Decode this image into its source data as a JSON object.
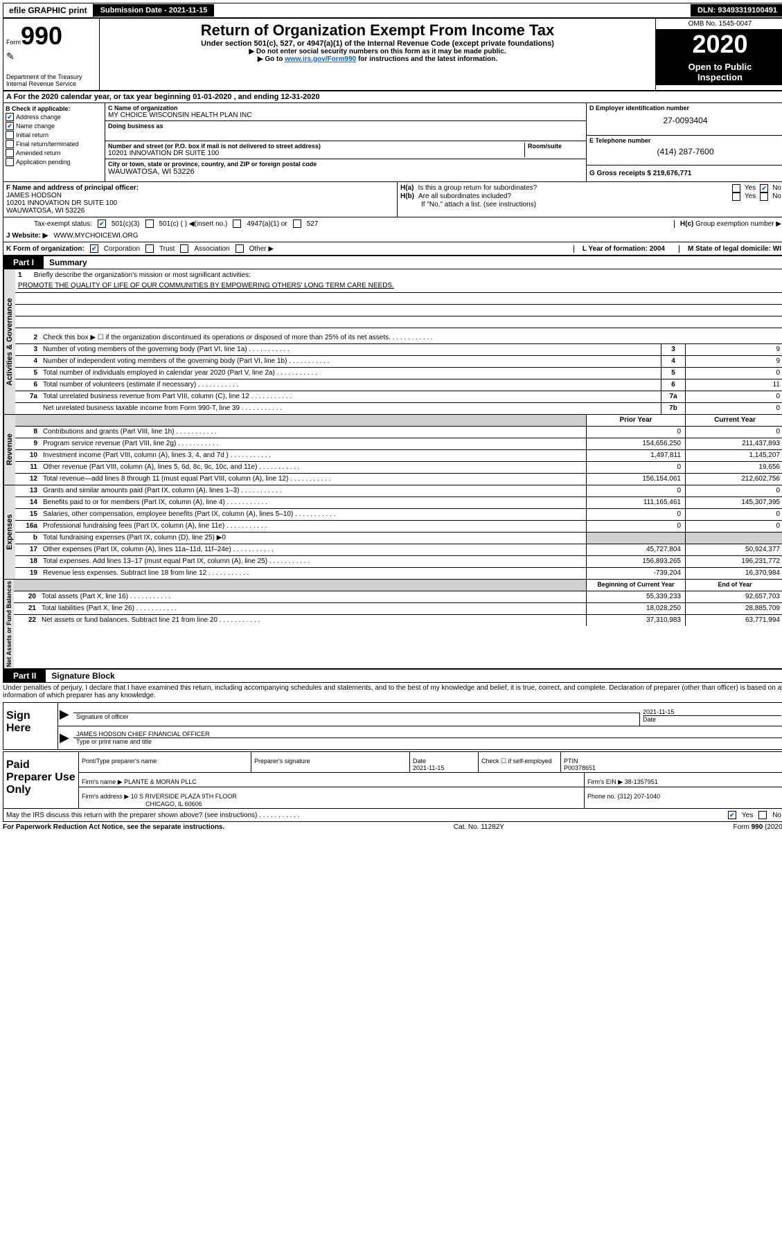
{
  "topbar": {
    "efile": "efile GRAPHIC print",
    "submission_label": "Submission Date - 2021-11-15",
    "dln": "DLN: 93493319100491"
  },
  "header": {
    "form_prefix": "Form",
    "form_num": "990",
    "dept1": "Department of the Treasury",
    "dept2": "Internal Revenue Service",
    "title": "Return of Organization Exempt From Income Tax",
    "subtitle": "Under section 501(c), 527, or 4947(a)(1) of the Internal Revenue Code (except private foundations)",
    "arrow1": "▶ Do not enter social security numbers on this form as it may be made public.",
    "arrow2_pre": "▶ Go to ",
    "arrow2_link": "www.irs.gov/Form990",
    "arrow2_post": " for instructions and the latest information.",
    "omb": "OMB No. 1545-0047",
    "year": "2020",
    "open1": "Open to Public",
    "open2": "Inspection"
  },
  "sectionA": "A For the 2020 calendar year, or tax year beginning 01-01-2020   , and ending 12-31-2020",
  "colB": {
    "heading": "B Check if applicable:",
    "items": [
      {
        "checked": true,
        "label": "Address change"
      },
      {
        "checked": true,
        "label": "Name change"
      },
      {
        "checked": false,
        "label": "Initial return"
      },
      {
        "checked": false,
        "label": "Final return/terminated"
      },
      {
        "checked": false,
        "label": "Amended return"
      },
      {
        "checked": false,
        "label": "Application pending"
      }
    ]
  },
  "colC": {
    "name_label": "C Name of organization",
    "name": "MY CHOICE WISCONSIN HEALTH PLAN INC",
    "dba_label": "Doing business as",
    "dba": "",
    "street_label": "Number and street (or P.O. box if mail is not delivered to street address)",
    "room_label": "Room/suite",
    "street": "10201 INNOVATION DR SUITE 100",
    "city_label": "City or town, state or province, country, and ZIP or foreign postal code",
    "city": "WAUWATOSA, WI  53226"
  },
  "colD": {
    "ein_label": "D Employer identification number",
    "ein": "27-0093404",
    "phone_label": "E Telephone number",
    "phone": "(414) 287-7600",
    "gross_label": "G Gross receipts $ 219,676,771"
  },
  "principal": {
    "label": "F  Name and address of principal officer:",
    "name": "JAMES HODSON",
    "addr1": "10201 INNOVATION DR SUITE 100",
    "addr2": "WAUWATOSA, WI  53226"
  },
  "ha": {
    "label": "H(a)",
    "text": "Is this a group return for subordinates?",
    "yes": "Yes",
    "no": "No"
  },
  "hb": {
    "label": "H(b)",
    "text": "Are all subordinates included?",
    "note": "If \"No,\" attach a list. (see instructions)"
  },
  "hc": {
    "label": "H(c)",
    "text": "Group exemption number ▶"
  },
  "taxexempt": {
    "label": "Tax-exempt status:",
    "opt1": "501(c)(3)",
    "opt2": "501(c) (  ) ◀(insert no.)",
    "opt3": "4947(a)(1) or",
    "opt4": "527"
  },
  "website": {
    "label": "J     Website: ▶",
    "value": "WWW.MYCHOICEWI.ORG"
  },
  "formorg": {
    "label": "K Form of organization:",
    "corp": "Corporation",
    "trust": "Trust",
    "assoc": "Association",
    "other": "Other ▶"
  },
  "yearform": {
    "label": "L Year of formation: 2004"
  },
  "domicile": {
    "label": "M State of legal domicile: WI"
  },
  "part1": {
    "tab": "Part I",
    "title": "Summary"
  },
  "governance_label": "Activities & Governance",
  "mission": {
    "num": "1",
    "text": "Briefly describe the organization's mission or most significant activities:",
    "value": "PROMOTE THE QUALITY OF LIFE OF OUR COMMUNITIES BY EMPOWERING OTHERS' LONG TERM CARE NEEDS."
  },
  "gov_lines": [
    {
      "num": "2",
      "text": "Check this box ▶ ☐  if the organization discontinued its operations or disposed of more than 25% of its net assets.",
      "box": "",
      "val": ""
    },
    {
      "num": "3",
      "text": "Number of voting members of the governing body (Part VI, line 1a)",
      "box": "3",
      "val": "9"
    },
    {
      "num": "4",
      "text": "Number of independent voting members of the governing body (Part VI, line 1b)",
      "box": "4",
      "val": "9"
    },
    {
      "num": "5",
      "text": "Total number of individuals employed in calendar year 2020 (Part V, line 2a)",
      "box": "5",
      "val": "0"
    },
    {
      "num": "6",
      "text": "Total number of volunteers (estimate if necessary)",
      "box": "6",
      "val": "11"
    },
    {
      "num": "7a",
      "text": "Total unrelated business revenue from Part VIII, column (C), line 12",
      "box": "7a",
      "val": "0"
    },
    {
      "num": "",
      "text": "Net unrelated business taxable income from Form 990-T, line 39",
      "box": "7b",
      "val": "0"
    }
  ],
  "revenue_label": "Revenue",
  "col_headers": {
    "prior": "Prior Year",
    "current": "Current Year",
    "begin": "Beginning of Current Year",
    "end": "End of Year"
  },
  "revenue_lines": [
    {
      "num": "8",
      "text": "Contributions and grants (Part VIII, line 1h)",
      "prior": "0",
      "current": "0"
    },
    {
      "num": "9",
      "text": "Program service revenue (Part VIII, line 2g)",
      "prior": "154,656,250",
      "current": "211,437,893"
    },
    {
      "num": "10",
      "text": "Investment income (Part VIII, column (A), lines 3, 4, and 7d )",
      "prior": "1,497,811",
      "current": "1,145,207"
    },
    {
      "num": "11",
      "text": "Other revenue (Part VIII, column (A), lines 5, 6d, 8c, 9c, 10c, and 11e)",
      "prior": "0",
      "current": "19,656"
    },
    {
      "num": "12",
      "text": "Total revenue—add lines 8 through 11 (must equal Part VIII, column (A), line 12)",
      "prior": "156,154,061",
      "current": "212,602,756"
    }
  ],
  "expenses_label": "Expenses",
  "expense_lines": [
    {
      "num": "13",
      "text": "Grants and similar amounts paid (Part IX, column (A), lines 1–3)",
      "prior": "0",
      "current": "0"
    },
    {
      "num": "14",
      "text": "Benefits paid to or for members (Part IX, column (A), line 4)",
      "prior": "111,165,461",
      "current": "145,307,395"
    },
    {
      "num": "15",
      "text": "Salaries, other compensation, employee benefits (Part IX, column (A), lines 5–10)",
      "prior": "0",
      "current": "0"
    },
    {
      "num": "16a",
      "text": "Professional fundraising fees (Part IX, column (A), line 11e)",
      "prior": "0",
      "current": "0"
    },
    {
      "num": "b",
      "text": "Total fundraising expenses (Part IX, column (D), line 25) ▶0",
      "prior": "",
      "current": "",
      "shaded": true
    },
    {
      "num": "17",
      "text": "Other expenses (Part IX, column (A), lines 11a–11d, 11f–24e)",
      "prior": "45,727,804",
      "current": "50,924,377"
    },
    {
      "num": "18",
      "text": "Total expenses. Add lines 13–17 (must equal Part IX, column (A), line 25)",
      "prior": "156,893,265",
      "current": "196,231,772"
    },
    {
      "num": "19",
      "text": "Revenue less expenses. Subtract line 18 from line 12",
      "prior": "-739,204",
      "current": "16,370,984"
    }
  ],
  "netassets_label": "Net Assets or Fund Balances",
  "asset_lines": [
    {
      "num": "20",
      "text": "Total assets (Part X, line 16)",
      "prior": "55,339,233",
      "current": "92,657,703"
    },
    {
      "num": "21",
      "text": "Total liabilities (Part X, line 26)",
      "prior": "18,028,250",
      "current": "28,885,709"
    },
    {
      "num": "22",
      "text": "Net assets or fund balances. Subtract line 21 from line 20",
      "prior": "37,310,983",
      "current": "63,771,994"
    }
  ],
  "part2": {
    "tab": "Part II",
    "title": "Signature Block"
  },
  "perjury": "Under penalties of perjury, I declare that I have examined this return, including accompanying schedules and statements, and to the best of my knowledge and belief, it is true, correct, and complete. Declaration of preparer (other than officer) is based on all information of which preparer has any knowledge.",
  "sign": {
    "label": "Sign Here",
    "sig_label": "Signature of officer",
    "date_label": "Date",
    "date": "2021-11-15",
    "name": "JAMES HODSON  CHIEF FINANCIAL OFFICER",
    "name_label": "Type or print name and title"
  },
  "paid": {
    "label": "Paid Preparer Use Only",
    "print_label": "Print/Type preparer's name",
    "sig_label": "Preparer's signature",
    "date_label": "Date",
    "date": "2021-11-15",
    "check_label": "Check ☐ if self-employed",
    "ptin_label": "PTIN",
    "ptin": "P00378651",
    "firm_name_label": "Firm's name    ▶",
    "firm_name": "PLANTE & MORAN PLLC",
    "firm_ein_label": "Firm's EIN ▶",
    "firm_ein": "38-1357951",
    "firm_addr_label": "Firm's address ▶",
    "firm_addr1": "10 S RIVERSIDE PLAZA 9TH FLOOR",
    "firm_addr2": "CHICAGO, IL  60606",
    "phone_label": "Phone no.",
    "phone": "(312) 207-1040"
  },
  "discuss": {
    "text": "May the IRS discuss this return with the preparer shown above? (see instructions)",
    "yes": "Yes",
    "no": "No"
  },
  "footer": {
    "left": "For Paperwork Reduction Act Notice, see the separate instructions.",
    "mid": "Cat. No. 11282Y",
    "right": "Form 990 (2020)"
  }
}
